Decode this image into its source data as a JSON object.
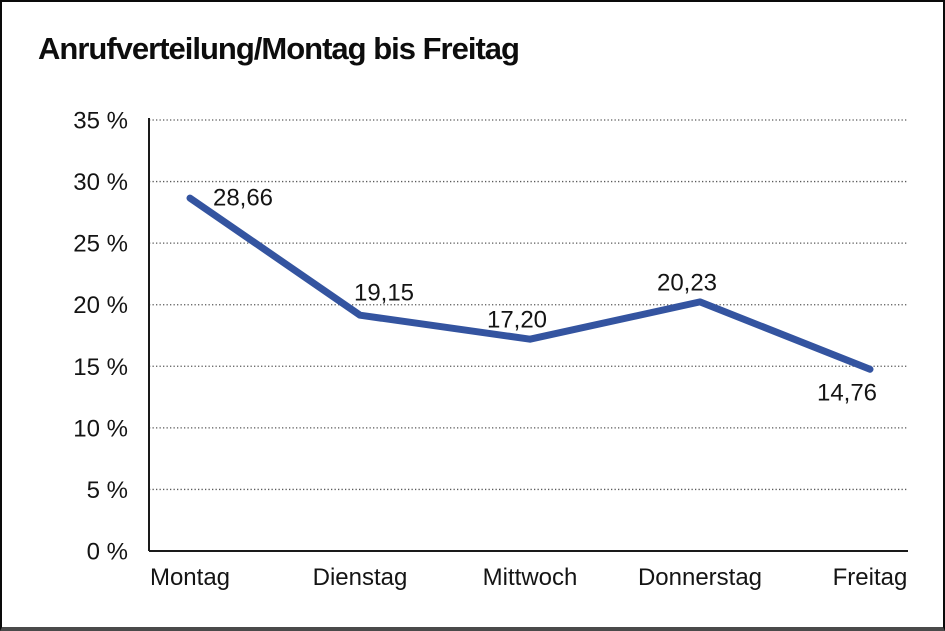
{
  "window": {
    "background": "#ffffff",
    "border_color": "#0a0a0a",
    "bottom_edge_color": "#4a4a4a"
  },
  "chart_data": {
    "type": "line",
    "title": "Anrufverteilung/Montag bis Freitag",
    "categories": [
      "Montag",
      "Dienstag",
      "Mittwoch",
      "Donnerstag",
      "Freitag"
    ],
    "values": [
      28.66,
      19.15,
      17.2,
      20.23,
      14.76
    ],
    "value_labels": [
      "28,66",
      "19,15",
      "17,20",
      "20,23",
      "14,76"
    ],
    "series_name": "Anrufverteilung",
    "xlabel": "",
    "ylabel": "",
    "ylim": [
      0,
      35
    ],
    "ytick_step": 5,
    "ytick_labels": [
      "0 %",
      "5 %",
      "10 %",
      "15 %",
      "20 %",
      "25 %",
      "30 %",
      "35 %"
    ],
    "grid": "horizontal-dotted",
    "legend_position": "none",
    "line_color": "#3454A0",
    "text_color": "#141414",
    "axis_color": "#1a1a1a",
    "gridline_color": "#595959"
  }
}
